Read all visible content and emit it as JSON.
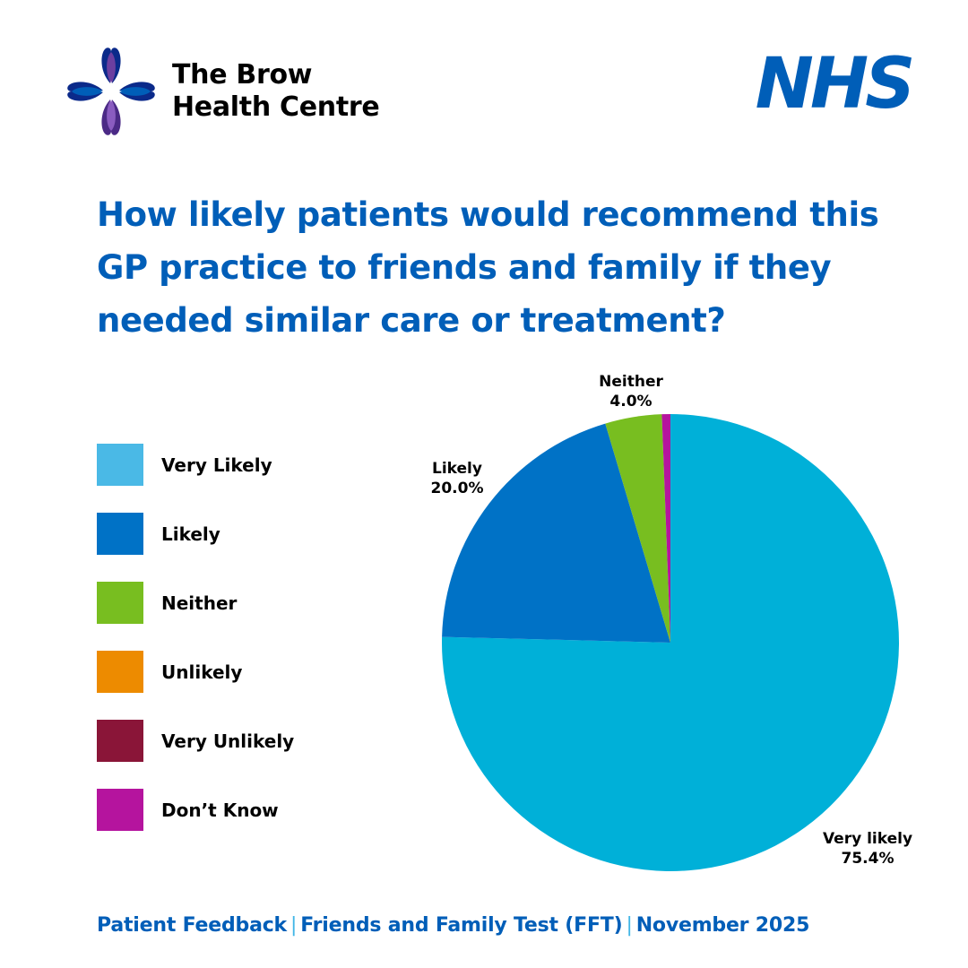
{
  "header": {
    "practice_name_line1": "The Brow",
    "practice_name_line2": "Health Centre",
    "nhs_logo_text": "NHS"
  },
  "colors": {
    "brand_blue": "#005eb8",
    "very_likely": "#00b0d8",
    "likely": "#0072c6",
    "neither": "#78be20",
    "unlikely": "#ed8b00",
    "very_unlikely": "#8a1538",
    "dont_know": "#b5149e",
    "logo_dark": "#0b2a8a",
    "logo_purple": "#6c3fa0"
  },
  "title": {
    "line1": "How likely patients would recommend this",
    "line2": "GP practice to friends and family if they",
    "line3": "needed similar care or treatment?"
  },
  "legend": [
    {
      "label": "Very Likely",
      "color": "#4ab9e6"
    },
    {
      "label": "Likely",
      "color": "#0072c6"
    },
    {
      "label": "Neither",
      "color": "#78be20"
    },
    {
      "label": "Unlikely",
      "color": "#ed8b00"
    },
    {
      "label": "Very Unlikely",
      "color": "#8a1538"
    },
    {
      "label": "Don’t Know",
      "color": "#b5149e"
    }
  ],
  "chart_data": {
    "type": "pie",
    "title": "How likely patients would recommend this GP practice to friends and family if they needed similar care or treatment?",
    "slices": [
      {
        "key": "very_likely",
        "name": "Very likely",
        "value": 75.4,
        "label": "75.4%",
        "color": "#00b0d8",
        "show_label": true
      },
      {
        "key": "likely",
        "name": "Likely",
        "value": 20.0,
        "label": "20.0%",
        "color": "#0072c6",
        "show_label": true
      },
      {
        "key": "neither",
        "name": "Neither",
        "value": 4.0,
        "label": "4.0%",
        "color": "#78be20",
        "show_label": true
      },
      {
        "key": "unlikely",
        "name": "Unlikely",
        "value": 0.0,
        "color": "#ed8b00",
        "show_label": false
      },
      {
        "key": "very_unlikely",
        "name": "Very Unlikely",
        "value": 0.0,
        "color": "#8a1538",
        "show_label": false
      },
      {
        "key": "dont_know",
        "name": "Don’t Know",
        "value": 0.6,
        "color": "#b5149e",
        "show_label": false
      }
    ],
    "start_angle": "12 o'clock",
    "direction": "clockwise",
    "legend_position": "left"
  },
  "footer": {
    "part1": "Patient Feedback",
    "part2": "Friends and Family Test (FFT)",
    "part3": "November 2025",
    "separator": "|"
  }
}
